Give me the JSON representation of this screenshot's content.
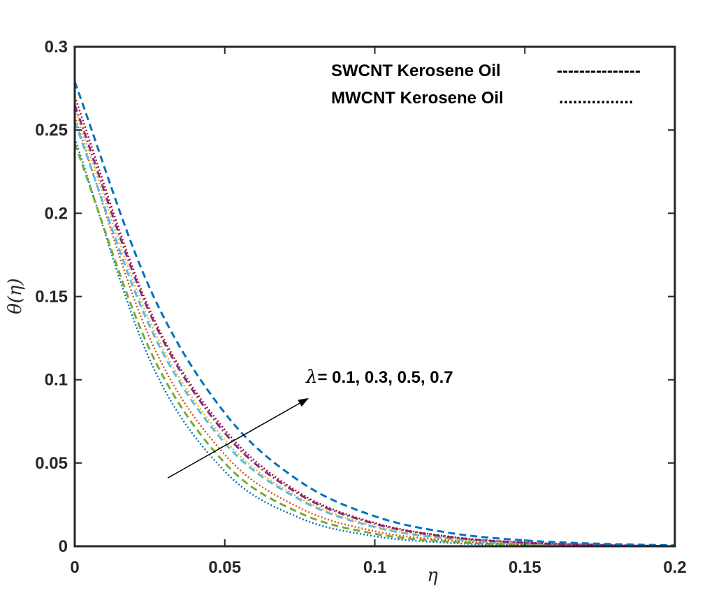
{
  "chart_data": {
    "type": "line",
    "xlabel": "η",
    "ylabel": "θ(η)",
    "xlim": [
      0,
      0.2
    ],
    "ylim": [
      0,
      0.3
    ],
    "x_ticks": [
      0,
      0.05,
      0.1,
      0.15,
      0.2
    ],
    "x_tick_labels": [
      "0",
      "0.05",
      "0.1",
      "0.15",
      "0.2"
    ],
    "y_ticks": [
      0,
      0.05,
      0.1,
      0.15,
      0.2,
      0.25,
      0.3
    ],
    "y_tick_labels": [
      "0",
      "0.05",
      "0.1",
      "0.15",
      "0.2",
      "0.25",
      "0.3"
    ],
    "legend": {
      "position": "top-right",
      "entries": [
        {
          "label": "SWCNT Kerosene Oil",
          "sample": "---------------"
        },
        {
          "label": "MWCNT Kerosene Oil",
          "sample": "................"
        }
      ]
    },
    "annotation": {
      "symbol": "λ",
      "text": "= 0.1, 0.3, 0.5, 0.7",
      "arrow_from": [
        0.031,
        0.041
      ],
      "arrow_to": [
        0.078,
        0.089
      ]
    },
    "series": [
      {
        "name": "SWCNT λ=0.1",
        "fluid": "SWCNT",
        "lambda": 0.1,
        "color": "#0072BD",
        "dash": "dotted",
        "x": [
          0,
          0.025,
          0.05,
          0.075,
          0.1,
          0.125,
          0.15,
          0.175,
          0.2
        ],
        "y": [
          0.245,
          0.112,
          0.045,
          0.017,
          0.006,
          0.002,
          0.0007,
          0.0002,
          0
        ]
      },
      {
        "name": "SWCNT λ=0.3",
        "fluid": "SWCNT",
        "lambda": 0.3,
        "color": "#77AC30",
        "dash": "dashed",
        "x": [
          0,
          0.025,
          0.05,
          0.075,
          0.1,
          0.125,
          0.15,
          0.175,
          0.2
        ],
        "y": [
          0.242,
          0.118,
          0.05,
          0.02,
          0.0075,
          0.0027,
          0.0009,
          0.0003,
          0
        ]
      },
      {
        "name": "SWCNT λ=0.5",
        "fluid": "SWCNT",
        "lambda": 0.5,
        "color": "#D95319",
        "dash": "dotted",
        "x": [
          0,
          0.025,
          0.05,
          0.075,
          0.1,
          0.125,
          0.15,
          0.175,
          0.2
        ],
        "y": [
          0.258,
          0.125,
          0.055,
          0.023,
          0.009,
          0.0035,
          0.0012,
          0.0004,
          0
        ]
      },
      {
        "name": "SWCNT λ=0.7",
        "fluid": "SWCNT",
        "lambda": 0.7,
        "color": "#4DBEEE",
        "dash": "dashed",
        "x": [
          0,
          0.025,
          0.05,
          0.075,
          0.1,
          0.125,
          0.15,
          0.175,
          0.2
        ],
        "y": [
          0.255,
          0.132,
          0.062,
          0.028,
          0.0115,
          0.0045,
          0.0017,
          0.0006,
          0
        ]
      },
      {
        "name": "MWCNT λ=0.1",
        "fluid": "MWCNT",
        "lambda": 0.1,
        "color": "#EDB120",
        "dash": "dotted",
        "x": [
          0,
          0.025,
          0.05,
          0.075,
          0.1,
          0.125,
          0.15,
          0.175,
          0.2
        ],
        "y": [
          0.262,
          0.135,
          0.064,
          0.029,
          0.012,
          0.0048,
          0.0018,
          0.0006,
          0
        ]
      },
      {
        "name": "MWCNT λ=0.3",
        "fluid": "MWCNT",
        "lambda": 0.3,
        "color": "#7E2F8E",
        "dash": "dashdot",
        "x": [
          0,
          0.025,
          0.05,
          0.075,
          0.1,
          0.125,
          0.15,
          0.175,
          0.2
        ],
        "y": [
          0.265,
          0.14,
          0.068,
          0.031,
          0.0135,
          0.0055,
          0.0021,
          0.0008,
          0
        ]
      },
      {
        "name": "MWCNT λ=0.5",
        "fluid": "MWCNT",
        "lambda": 0.5,
        "color": "#A2142F",
        "dash": "dotted",
        "x": [
          0,
          0.025,
          0.05,
          0.075,
          0.1,
          0.125,
          0.15,
          0.175,
          0.2
        ],
        "y": [
          0.27,
          0.142,
          0.07,
          0.032,
          0.014,
          0.0058,
          0.0023,
          0.0009,
          0
        ]
      },
      {
        "name": "MWCNT λ=0.7",
        "fluid": "MWCNT",
        "lambda": 0.7,
        "color": "#0072BD",
        "dash": "dashed",
        "x": [
          0,
          0.025,
          0.05,
          0.075,
          0.1,
          0.125,
          0.15,
          0.175,
          0.2
        ],
        "y": [
          0.279,
          0.155,
          0.08,
          0.039,
          0.018,
          0.008,
          0.0035,
          0.0015,
          0.0005
        ]
      }
    ]
  }
}
